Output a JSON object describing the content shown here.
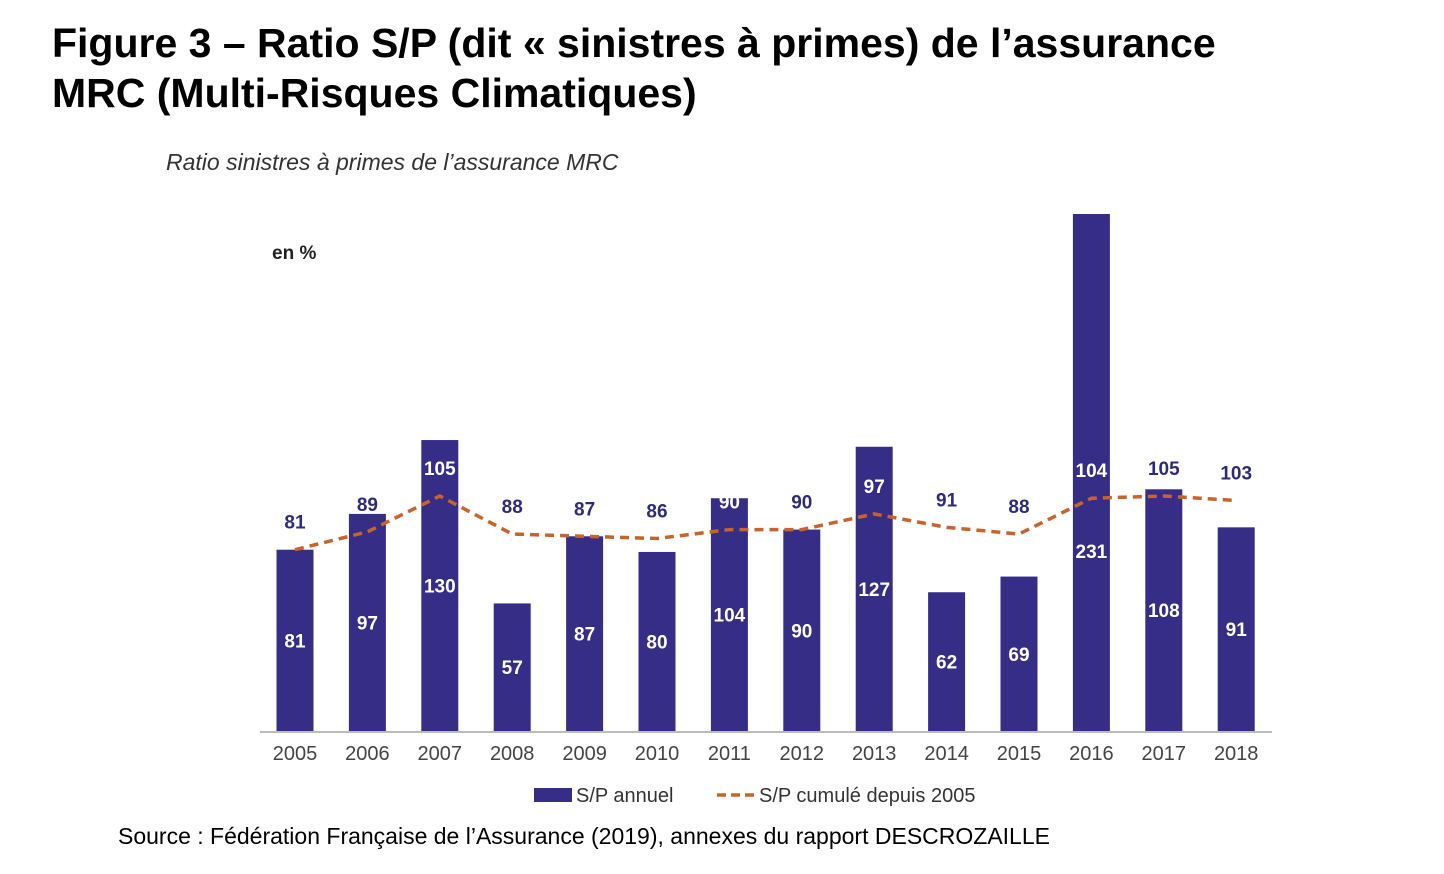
{
  "figure": {
    "title_line1": "Figure 3 – Ratio S/P (dit « sinistres à primes) de l’assurance",
    "title_line2": "MRC (Multi-Risques Climatiques)",
    "source": "Source : Fédération Française de l’Assurance (2019), annexes du rapport DESCROZAILLE"
  },
  "chart_data": {
    "type": "bar",
    "title": "Ratio sinistres à primes de l’assurance MRC",
    "unit_label": "en %",
    "categories": [
      "2005",
      "2006",
      "2007",
      "2008",
      "2009",
      "2010",
      "2011",
      "2012",
      "2013",
      "2014",
      "2015",
      "2016",
      "2017",
      "2018"
    ],
    "series": [
      {
        "name": "S/P annuel",
        "type": "bar",
        "values": [
          81,
          97,
          130,
          57,
          87,
          80,
          104,
          90,
          127,
          62,
          69,
          231,
          108,
          91
        ]
      },
      {
        "name": "S/P cumulé depuis 2005",
        "type": "line",
        "style": "dashed",
        "values": [
          81,
          89,
          105,
          88,
          87,
          86,
          90,
          90,
          97,
          91,
          88,
          104,
          105,
          103
        ]
      }
    ],
    "ylim": [
      0,
      231
    ],
    "grid": false,
    "legend_position": "bottom",
    "colors": {
      "bar": "#362d86",
      "line": "#c8632c",
      "axis": "#bbbbbb"
    }
  }
}
